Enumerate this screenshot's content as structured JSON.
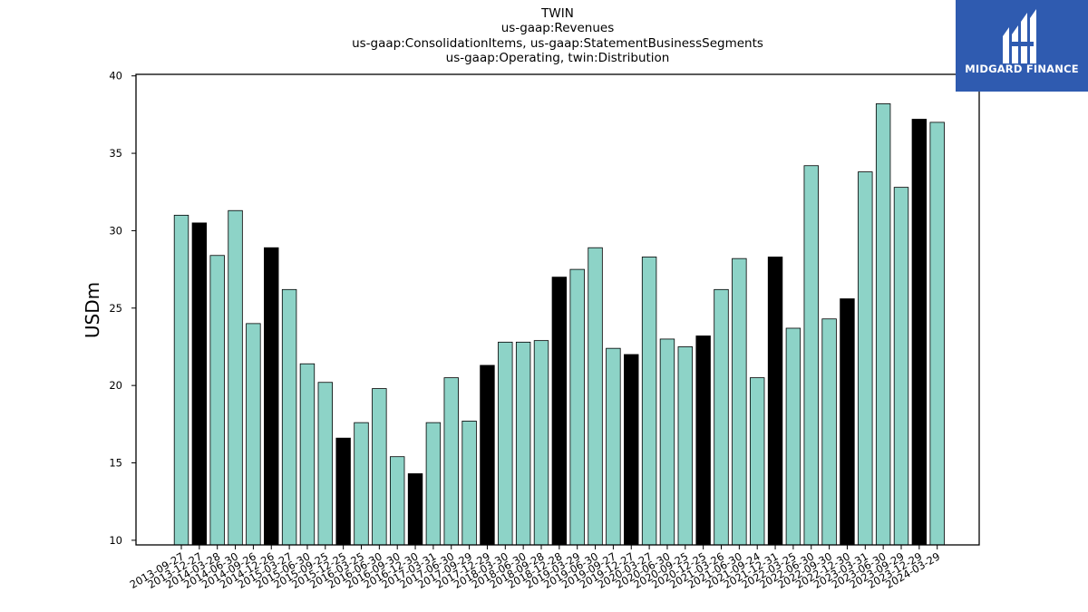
{
  "title_lines": [
    "TWIN",
    "us-gaap:Revenues",
    "us-gaap:ConsolidationItems, us-gaap:StatementBusinessSegments",
    "us-gaap:Operating, twin:Distribution"
  ],
  "logo": {
    "text": "MIDGARD FINANCE",
    "background": "#2f5bb0",
    "icon": "midgard-logo-icon"
  },
  "chart_data": {
    "type": "bar",
    "ylabel": "USDm",
    "xlabel": "",
    "ylim": [
      9.7,
      40.1
    ],
    "yticks": [
      10,
      15,
      20,
      25,
      30,
      35,
      40
    ],
    "grid": false,
    "colors": {
      "quarter": "#8dd3c7",
      "annual": "#000000",
      "edge": "#000000"
    },
    "categories": [
      "2013-09-27",
      "2013-12-27",
      "2014-03-28",
      "2014-06-30",
      "2014-09-26",
      "2014-12-26",
      "2015-03-27",
      "2015-06-30",
      "2015-09-25",
      "2015-12-25",
      "2016-03-25",
      "2016-06-30",
      "2016-09-30",
      "2016-12-30",
      "2017-03-31",
      "2017-06-30",
      "2017-09-29",
      "2017-12-29",
      "2018-03-30",
      "2018-06-30",
      "2018-09-28",
      "2018-12-28",
      "2019-03-29",
      "2019-06-30",
      "2019-09-27",
      "2019-12-27",
      "2020-03-27",
      "2020-06-30",
      "2020-09-25",
      "2020-12-25",
      "2021-03-26",
      "2021-06-30",
      "2021-09-24",
      "2021-12-31",
      "2022-03-25",
      "2022-06-30",
      "2022-09-30",
      "2022-12-30",
      "2023-03-31",
      "2023-06-30",
      "2023-09-29",
      "2023-12-29",
      "2024-03-29"
    ],
    "values": [
      31.0,
      30.5,
      28.4,
      31.3,
      24.0,
      28.9,
      26.2,
      21.4,
      20.2,
      16.6,
      17.6,
      19.8,
      15.4,
      14.3,
      17.6,
      20.5,
      17.7,
      21.3,
      22.8,
      22.8,
      22.9,
      27.0,
      27.5,
      28.9,
      22.4,
      22.0,
      28.3,
      23.0,
      22.5,
      23.2,
      26.2,
      28.2,
      20.5,
      28.3,
      23.7,
      34.2,
      24.3,
      25.6,
      33.8,
      38.2,
      32.8,
      37.2,
      37.0
    ],
    "highlight": [
      false,
      true,
      false,
      false,
      false,
      true,
      false,
      false,
      false,
      true,
      false,
      false,
      false,
      true,
      false,
      false,
      false,
      true,
      false,
      false,
      false,
      true,
      false,
      false,
      false,
      true,
      false,
      false,
      false,
      true,
      false,
      false,
      false,
      true,
      false,
      false,
      false,
      true,
      false,
      false,
      false,
      true,
      false
    ]
  }
}
